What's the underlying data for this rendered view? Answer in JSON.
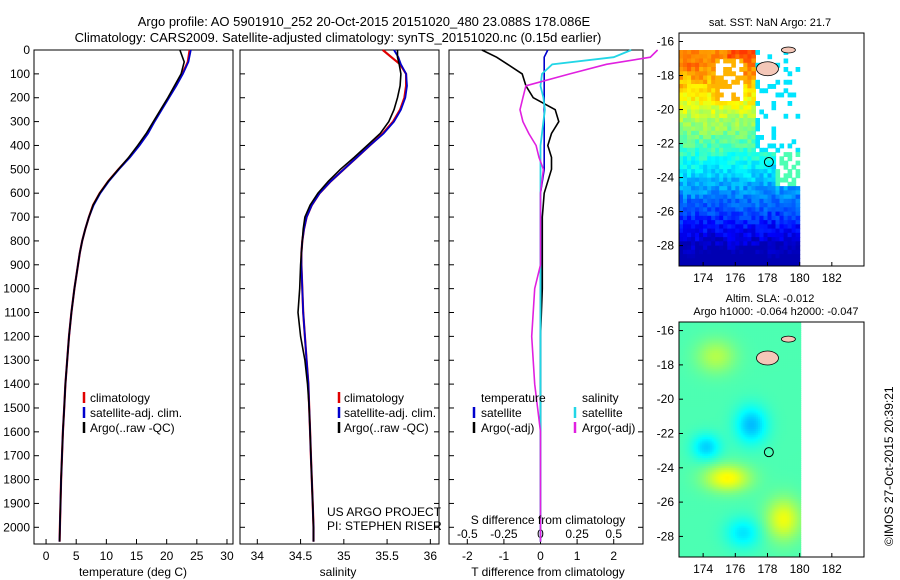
{
  "header": {
    "line1": "Argo profile: AO 5901910_252 20-Oct-2015 20151020_480 23.088S 178.086E",
    "line2": "Climatology: CARS2009. Satellite-adjusted climatology: synTS_20151020.nc (0.15d earlier)"
  },
  "colors": {
    "climatology": "#e00000",
    "satellite": "#0000cc",
    "argo": "#000000",
    "sat_salinity": "#22d6e6",
    "argo_salinity": "#e020e0"
  },
  "chart_data": [
    {
      "type": "line",
      "id": "temperature",
      "xlabel": "temperature (deg C)",
      "ylabel": "",
      "xlim": [
        -2,
        31
      ],
      "ylim": [
        2070,
        0
      ],
      "xticks": [
        0,
        5,
        10,
        15,
        20,
        25,
        30
      ],
      "yticks": [
        0,
        100,
        200,
        300,
        400,
        500,
        600,
        700,
        800,
        900,
        1000,
        1100,
        1200,
        1300,
        1400,
        1500,
        1600,
        1700,
        1800,
        1900,
        2000
      ],
      "depth": [
        0,
        50,
        100,
        150,
        200,
        250,
        300,
        350,
        400,
        450,
        500,
        550,
        600,
        650,
        700,
        750,
        800,
        850,
        900,
        1000,
        1100,
        1200,
        1300,
        1400,
        1500,
        1600,
        1700,
        1800,
        1900,
        2000,
        2060
      ],
      "series": [
        {
          "name": "climatology",
          "values": [
            23.8,
            23.5,
            22.6,
            21.5,
            20.3,
            19.1,
            17.9,
            16.8,
            15.4,
            13.8,
            12.0,
            10.3,
            8.9,
            7.8,
            7.1,
            6.5,
            6.0,
            5.6,
            5.3,
            4.7,
            4.2,
            3.8,
            3.5,
            3.2,
            3.0,
            2.8,
            2.65,
            2.5,
            2.4,
            2.3,
            2.25
          ]
        },
        {
          "name": "satellite",
          "values": [
            24.0,
            23.6,
            22.7,
            21.6,
            20.4,
            19.2,
            18.0,
            16.9,
            15.5,
            13.9,
            12.1,
            10.4,
            9.0,
            7.9,
            7.1,
            6.5,
            6.0,
            5.6,
            5.3,
            4.7,
            4.2,
            3.8,
            3.5,
            3.2,
            3.0,
            2.8,
            2.65,
            2.5,
            2.4,
            2.3,
            2.25
          ]
        },
        {
          "name": "Argo(..raw -QC)",
          "values": [
            22.2,
            22.9,
            22.4,
            21.3,
            20.2,
            19.0,
            17.8,
            16.6,
            15.2,
            13.7,
            12.0,
            10.3,
            8.9,
            7.8,
            7.1,
            6.5,
            6.0,
            5.6,
            5.3,
            4.7,
            4.2,
            3.8,
            3.5,
            3.2,
            3.0,
            2.8,
            2.65,
            2.5,
            2.4,
            2.3,
            2.25
          ]
        }
      ],
      "legend": {
        "position": "bottom-right",
        "entries": [
          "climatology",
          "satellite-adj. clim.",
          "Argo(..raw -QC)"
        ]
      }
    },
    {
      "type": "line",
      "id": "salinity",
      "xlabel": "salinity",
      "xlim": [
        33.8,
        36.1
      ],
      "ylim": [
        2070,
        0
      ],
      "xticks": [
        34,
        34.5,
        35,
        35.5,
        36
      ],
      "depth": [
        0,
        30,
        60,
        100,
        150,
        200,
        250,
        300,
        350,
        400,
        450,
        500,
        550,
        600,
        650,
        700,
        750,
        800,
        850,
        900,
        1000,
        1100,
        1200,
        1300,
        1400,
        1500,
        1600,
        1700,
        1800,
        1900,
        2000,
        2060
      ],
      "series": [
        {
          "name": "climatology",
          "values": [
            35.45,
            35.55,
            35.65,
            35.72,
            35.72,
            35.7,
            35.65,
            35.57,
            35.45,
            35.3,
            35.15,
            35.0,
            34.85,
            34.72,
            34.63,
            34.57,
            34.54,
            34.52,
            34.51,
            34.51,
            34.52,
            34.53,
            34.55,
            34.57,
            34.59,
            34.6,
            34.61,
            34.62,
            34.63,
            34.64,
            34.65,
            34.65
          ]
        },
        {
          "name": "satellite",
          "values": [
            35.58,
            35.63,
            35.66,
            35.72,
            35.73,
            35.71,
            35.66,
            35.58,
            35.46,
            35.3,
            35.15,
            35.0,
            34.85,
            34.72,
            34.63,
            34.57,
            34.54,
            34.52,
            34.51,
            34.51,
            34.52,
            34.53,
            34.55,
            34.57,
            34.59,
            34.6,
            34.61,
            34.62,
            34.63,
            34.64,
            34.65,
            34.65
          ]
        },
        {
          "name": "Argo(..raw -QC)",
          "values": [
            35.62,
            35.62,
            35.64,
            35.66,
            35.65,
            35.62,
            35.58,
            35.52,
            35.42,
            35.27,
            35.12,
            34.96,
            34.82,
            34.7,
            34.61,
            34.55,
            34.53,
            34.52,
            34.51,
            34.5,
            34.49,
            34.47,
            34.5,
            34.55,
            34.58,
            34.6,
            34.61,
            34.62,
            34.63,
            34.64,
            34.65,
            34.65
          ]
        }
      ],
      "legend": {
        "position": "bottom-right",
        "entries": [
          "climatology",
          "satellite-adj. clim.",
          "Argo(..raw -QC)"
        ]
      },
      "annotations": [
        "US ARGO PROJECT",
        "PI: STEPHEN RISER"
      ]
    },
    {
      "type": "line",
      "id": "differences",
      "xlabel": "T difference from climatology",
      "xlabel_top": "S difference from climatology",
      "xlim": [
        -2.5,
        2.8
      ],
      "ylim": [
        2070,
        0
      ],
      "xticks": [
        -2,
        -1,
        0,
        1,
        2
      ],
      "s_ticks_values": [
        -0.5,
        -0.25,
        0,
        0.25,
        0.5
      ],
      "s_ticks": [
        "-0.5",
        "-0.25",
        "0",
        "0.25",
        "0.5"
      ],
      "depth": [
        0,
        30,
        60,
        100,
        150,
        200,
        250,
        300,
        350,
        400,
        450,
        500,
        600,
        700,
        800,
        900,
        1000,
        1200,
        1400,
        1600,
        1800,
        2000,
        2060
      ],
      "series": [
        {
          "name": "T satellite",
          "values": [
            0.2,
            0.1,
            0.1,
            0.1,
            0.1,
            0.1,
            0.1,
            0.1,
            0.1,
            0.1,
            0.1,
            0.1,
            0.0,
            0.0,
            0.0,
            0.0,
            0.0,
            0.0,
            0.0,
            0.0,
            0.0,
            0.0,
            0.0
          ]
        },
        {
          "name": "T Argo(-adj)",
          "values": [
            -1.6,
            -1.2,
            -0.9,
            -0.5,
            -0.4,
            -0.2,
            0.4,
            0.5,
            0.3,
            0.2,
            0.3,
            0.3,
            0.1,
            0.05,
            0.05,
            0.05,
            0.05,
            0.0,
            0.0,
            0.0,
            0.0,
            0.0,
            0.0
          ]
        },
        {
          "name": "S satellite",
          "values": [
            0.62,
            0.5,
            0.08,
            0.01,
            0.0,
            0.02,
            0.03,
            0.02,
            0.01,
            0.0,
            0.0,
            0.0,
            0.0,
            0.0,
            0.0,
            0.0,
            0.0,
            0.0,
            0.0,
            0.0,
            0.0,
            0.0,
            0.0
          ]
        },
        {
          "name": "S Argo(-adj)",
          "values": [
            0.8,
            0.75,
            0.45,
            0.2,
            -0.1,
            -0.12,
            -0.14,
            -0.12,
            -0.08,
            -0.03,
            -0.01,
            0.02,
            0.0,
            0.0,
            0.0,
            0.0,
            -0.04,
            -0.06,
            -0.04,
            0.0,
            0.0,
            0.0,
            0.0
          ]
        }
      ],
      "legend": {
        "position": "bottom",
        "left_title": "temperature",
        "right_title": "salinity",
        "entries": [
          "satellite",
          "Argo(-adj)",
          "satellite",
          "Argo(-adj)"
        ]
      }
    },
    {
      "type": "heatmap",
      "id": "sst-map",
      "title": "sat. SST: NaN Argo: 21.7",
      "xlim": [
        172.5,
        184
      ],
      "ylim": [
        -29.2,
        -15.5
      ],
      "xticks": [
        174,
        176,
        178,
        180,
        182
      ],
      "yticks": [
        -16,
        -18,
        -20,
        -22,
        -24,
        -26,
        -28
      ],
      "yticks_labels": [
        "-16",
        "-18",
        "-20",
        "-22",
        "-24",
        "-26",
        "-28"
      ],
      "xticks_labels": [
        "174",
        "176",
        "178",
        "180",
        "182"
      ],
      "marker": {
        "lon": 178.086,
        "lat": -23.088
      },
      "data_extent": {
        "lon": [
          172.5,
          180.0
        ],
        "lat": [
          -29.2,
          -16.5
        ]
      },
      "colorscale": "jet",
      "value_range": [
        20,
        28
      ]
    },
    {
      "type": "heatmap",
      "id": "sla-map",
      "title": "Altim. SLA: -0.012",
      "subtitle": "Argo h1000: -0.064 h2000: -0.047",
      "xlim": [
        172.5,
        184
      ],
      "ylim": [
        -29.2,
        -15.5
      ],
      "xticks": [
        174,
        176,
        178,
        180,
        182
      ],
      "yticks": [
        -16,
        -18,
        -20,
        -22,
        -24,
        -26,
        -28
      ],
      "yticks_labels": [
        "-16",
        "-18",
        "-20",
        "-22",
        "-24",
        "-26",
        "-28"
      ],
      "xticks_labels": [
        "174",
        "176",
        "178",
        "180",
        "182"
      ],
      "marker": {
        "lon": 178.086,
        "lat": -23.088
      },
      "data_extent": {
        "lon": [
          172.5,
          180.0
        ],
        "lat": [
          -29.2,
          -15.5
        ]
      },
      "colorscale": "jet",
      "value_range": [
        -0.15,
        0.15
      ]
    }
  ],
  "footer": {
    "credit": "©IMOS 27-Oct-2015 20:39:21"
  }
}
